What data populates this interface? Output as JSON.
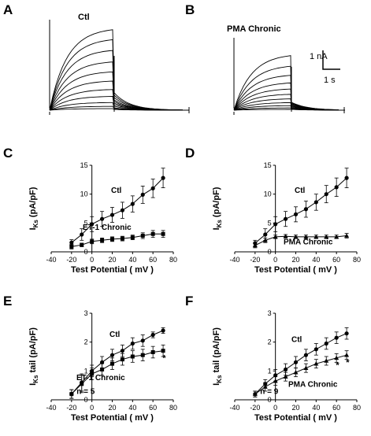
{
  "panels": {
    "A": {
      "letter": "A",
      "title": "Ctl"
    },
    "B": {
      "letter": "B",
      "title": "PMA  Chronic"
    }
  },
  "scale_bar": {
    "current": "1 nA",
    "time": "1 s"
  },
  "chart_data": [
    {
      "id": "C",
      "letter": "C",
      "type": "line",
      "xlabel": "Test Potential ( mV )",
      "ylabel_main": "I",
      "ylabel_sub": "Ks",
      "ylabel_rest": " (pA/pF)",
      "xlim": [
        -40,
        80
      ],
      "ylim": [
        0,
        15
      ],
      "xticks": [
        -40,
        -20,
        0,
        20,
        40,
        60,
        80
      ],
      "yticks": [
        0,
        5,
        10,
        15
      ],
      "x": [
        -20,
        -10,
        0,
        10,
        20,
        30,
        40,
        50,
        60,
        70
      ],
      "series": [
        {
          "name": "Ctl",
          "marker": "circle",
          "y": [
            1.6,
            3.0,
            4.8,
            5.7,
            6.4,
            7.2,
            8.3,
            9.9,
            11.0,
            12.8
          ],
          "err": [
            0.5,
            1.0,
            1.3,
            1.3,
            1.3,
            1.4,
            1.4,
            1.5,
            1.6,
            1.7
          ]
        },
        {
          "name": "ET-1 Chronic",
          "marker": "square",
          "y": [
            0.9,
            1.2,
            1.8,
            2.0,
            2.2,
            2.3,
            2.5,
            2.8,
            3.1,
            3.1
          ],
          "err": [
            0.4,
            0.3,
            0.4,
            0.4,
            0.4,
            0.4,
            0.4,
            0.5,
            0.6,
            0.6
          ]
        }
      ],
      "annotations": []
    },
    {
      "id": "D",
      "letter": "D",
      "type": "line",
      "xlabel": "Test Potential ( mV )",
      "ylabel_main": "I",
      "ylabel_sub": "Ks",
      "ylabel_rest": " (pA/pF)",
      "xlim": [
        -40,
        80
      ],
      "ylim": [
        0,
        15
      ],
      "xticks": [
        -40,
        -20,
        0,
        20,
        40,
        60,
        80
      ],
      "yticks": [
        0,
        5,
        10,
        15
      ],
      "x": [
        -20,
        -10,
        0,
        10,
        20,
        30,
        40,
        50,
        60,
        70
      ],
      "series": [
        {
          "name": "Ctl",
          "marker": "circle",
          "y": [
            1.5,
            3.0,
            4.8,
            5.7,
            6.5,
            7.4,
            8.6,
            10.0,
            11.2,
            12.8
          ],
          "err": [
            0.5,
            1.0,
            1.3,
            1.3,
            1.3,
            1.4,
            1.4,
            1.5,
            1.6,
            1.7
          ]
        },
        {
          "name": "PMA Chronic",
          "marker": "triangle",
          "y": [
            1.1,
            2.0,
            2.6,
            2.7,
            2.6,
            2.6,
            2.6,
            2.6,
            2.6,
            2.8
          ],
          "err": [
            0.4,
            0.4,
            0.3,
            0.3,
            0.3,
            0.3,
            0.3,
            0.3,
            0.3,
            0.4
          ]
        }
      ],
      "annotations": []
    },
    {
      "id": "E",
      "letter": "E",
      "type": "line",
      "xlabel": "Test Potential ( mV )",
      "ylabel_main": "I",
      "ylabel_sub": "Ks",
      "ylabel_rest": " tail (pA/pF)",
      "xlim": [
        -40,
        80
      ],
      "ylim": [
        0,
        3
      ],
      "xticks": [
        -40,
        -20,
        0,
        20,
        40,
        60,
        80
      ],
      "yticks": [
        0,
        1,
        2,
        3
      ],
      "x": [
        -20,
        -10,
        0,
        10,
        20,
        30,
        40,
        50,
        60,
        70
      ],
      "series": [
        {
          "name": "Ctl",
          "marker": "circle",
          "y": [
            0.2,
            0.6,
            1.0,
            1.3,
            1.55,
            1.7,
            1.95,
            2.05,
            2.25,
            2.4
          ],
          "err": [
            0.15,
            0.3,
            0.2,
            0.2,
            0.2,
            0.2,
            0.2,
            0.2,
            0.1,
            0.1
          ]
        },
        {
          "name": "ET-1 Chronic",
          "marker": "square",
          "y": [
            0.2,
            0.55,
            0.9,
            1.05,
            1.25,
            1.4,
            1.5,
            1.55,
            1.65,
            1.7
          ],
          "err": [
            0.15,
            0.3,
            0.2,
            0.2,
            0.2,
            0.2,
            0.2,
            0.2,
            0.2,
            0.2
          ]
        }
      ],
      "annotations": [
        {
          "text": "n = 5",
          "x": -15,
          "y": 0.2
        },
        {
          "text": "*",
          "x": 71,
          "y": 1.35
        }
      ]
    },
    {
      "id": "F",
      "letter": "F",
      "type": "line",
      "xlabel": "Test Potential ( mV )",
      "ylabel_main": "I",
      "ylabel_sub": "Ks",
      "ylabel_rest": " tail (pA/pF)",
      "xlim": [
        -40,
        80
      ],
      "ylim": [
        0,
        3
      ],
      "xticks": [
        -40,
        -20,
        0,
        20,
        40,
        60,
        80
      ],
      "yticks": [
        0,
        1,
        2,
        3
      ],
      "x": [
        -20,
        -10,
        0,
        10,
        20,
        30,
        40,
        50,
        60,
        70
      ],
      "series": [
        {
          "name": "Ctl",
          "marker": "circle",
          "y": [
            0.2,
            0.55,
            0.85,
            1.05,
            1.3,
            1.55,
            1.75,
            1.95,
            2.15,
            2.3
          ],
          "err": [
            0.1,
            0.15,
            0.2,
            0.2,
            0.2,
            0.2,
            0.2,
            0.2,
            0.2,
            0.2
          ]
        },
        {
          "name": "PMA Chronic",
          "marker": "triangle",
          "y": [
            0.2,
            0.45,
            0.65,
            0.8,
            0.95,
            1.1,
            1.25,
            1.35,
            1.45,
            1.55
          ],
          "err": [
            0.1,
            0.15,
            0.15,
            0.15,
            0.15,
            0.15,
            0.15,
            0.15,
            0.15,
            0.15
          ]
        }
      ],
      "annotations": [
        {
          "text": "n = 9",
          "x": -15,
          "y": 0.2
        },
        {
          "text": "*",
          "x": 61,
          "y": 1.1
        },
        {
          "text": "*",
          "x": 71,
          "y": 1.2
        }
      ]
    }
  ]
}
